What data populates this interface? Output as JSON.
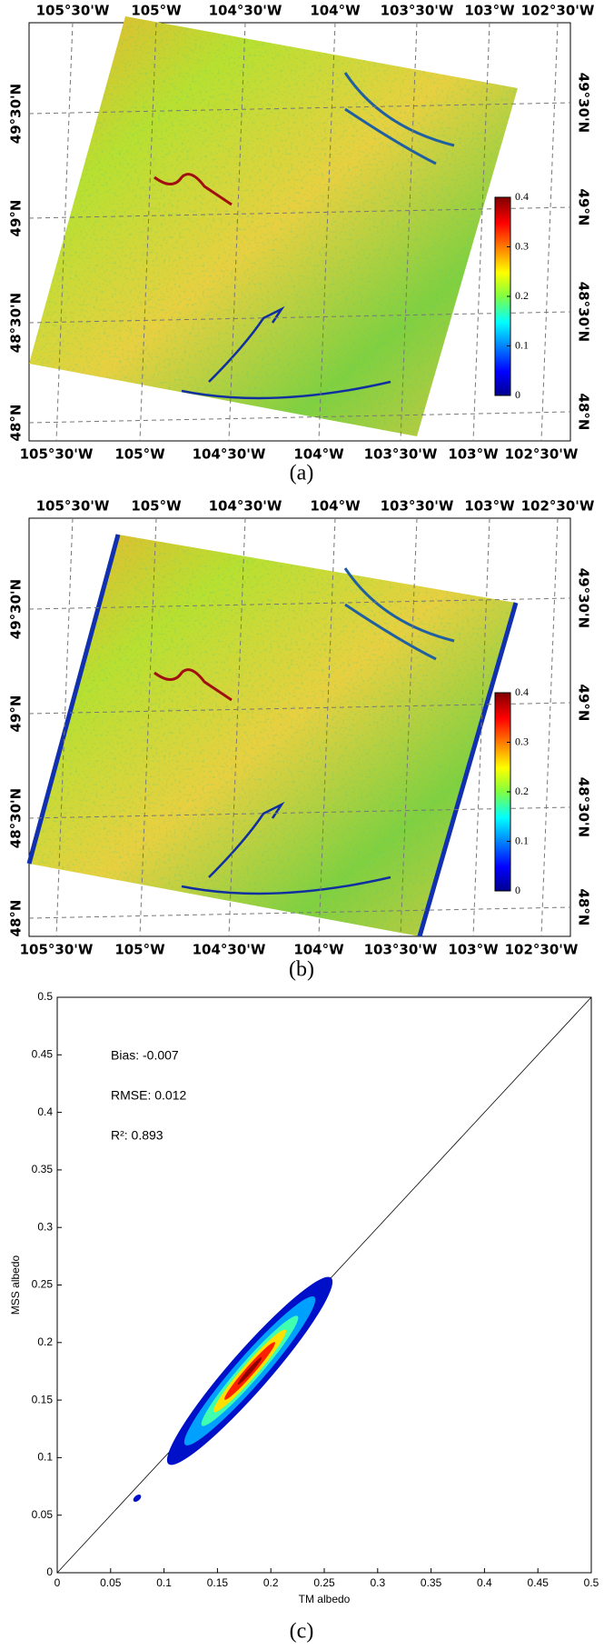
{
  "panels": [
    {
      "label": "(a)",
      "lon_labels": [
        "105°30'W",
        "105°W",
        "104°30'W",
        "104°W",
        "103°30'W",
        "103°W",
        "102°30'W"
      ],
      "lat_labels": [
        "49°30'N",
        "49°N",
        "48°30'N",
        "48°N"
      ],
      "colorbar": {
        "lim": [
          0,
          0.4
        ],
        "ticks": [
          0,
          0.1,
          0.2,
          0.3,
          0.4
        ]
      }
    },
    {
      "label": "(b)",
      "lon_labels": [
        "105°30'W",
        "105°W",
        "104°30'W",
        "104°W",
        "103°30'W",
        "103°W",
        "102°30'W"
      ],
      "lat_labels": [
        "49°30'N",
        "49°N",
        "48°30'N",
        "48°N"
      ],
      "colorbar": {
        "lim": [
          0,
          0.4
        ],
        "ticks": [
          0,
          0.1,
          0.2,
          0.3,
          0.4
        ]
      }
    }
  ],
  "chart_data": {
    "type": "scatter",
    "label": "(c)",
    "x_label": "TM albedo",
    "y_label": "MSS albedo",
    "annotations": [
      "Bias: -0.007",
      "RMSE: 0.012",
      "R²: 0.893"
    ],
    "xlim": [
      0,
      0.5
    ],
    "ylim": [
      0,
      0.5
    ],
    "xticks": [
      0,
      0.05,
      0.1,
      0.15,
      0.2,
      0.25,
      0.3,
      0.35,
      0.4,
      0.45,
      0.5
    ],
    "yticks": [
      0,
      0.05,
      0.1,
      0.15,
      0.2,
      0.25,
      0.3,
      0.35,
      0.4,
      0.45,
      0.5
    ]
  }
}
